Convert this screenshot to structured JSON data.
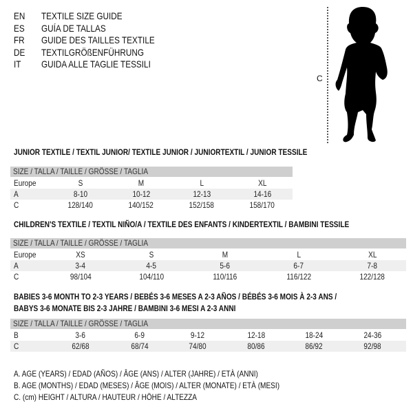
{
  "header": [
    {
      "code": "EN",
      "title": "TEXTILE SIZE GUIDE"
    },
    {
      "code": "ES",
      "title": "GUÍA DE TALLAS"
    },
    {
      "code": "FR",
      "title": "GUIDE DES TAILLES TEXTILE"
    },
    {
      "code": "DE",
      "title": "TEXTILGRÖßENFÜHRUNG"
    },
    {
      "code": "IT",
      "title": "GUIDA ALLE TAGLIE TESSILI"
    }
  ],
  "figure": {
    "measure_label": "C",
    "icon": "child-silhouette"
  },
  "size_header": "SIZE / TALLA / TAILLE / GRÖSSE / TAGLIA",
  "tables": [
    {
      "title": "JUNIOR TEXTILE / TEXTIL JUNIOR/ TEXTILE JUNIOR / JUNIORTEXTIL / JUNIOR TESSILE",
      "rows": [
        {
          "label": "Europe",
          "values": [
            "S",
            "M",
            "L",
            "XL"
          ]
        },
        {
          "label": "A",
          "values": [
            "8-10",
            "10-12",
            "12-13",
            "14-16"
          ]
        },
        {
          "label": "C",
          "values": [
            "128/140",
            "140/152",
            "152/158",
            "158/170"
          ]
        }
      ]
    },
    {
      "title": "CHILDREN'S TEXTILE / TEXTIL NIÑO/A / TEXTILE DES ENFANTS / KINDERTEXTIL / BAMBINI TESSILE",
      "rows": [
        {
          "label": "Europe",
          "values": [
            "XS",
            "S",
            "M",
            "L",
            "XL"
          ]
        },
        {
          "label": "A",
          "values": [
            "3-4",
            "4-5",
            "5-6",
            "6-7",
            "7-8"
          ]
        },
        {
          "label": "C",
          "values": [
            "98/104",
            "104/110",
            "110/116",
            "116/122",
            "122/128"
          ]
        }
      ]
    },
    {
      "title": "BABIES 3-6 MONTH TO 2-3 YEARS / BEBÉS 3-6 MESES A 2-3 AÑOS / BÉBÉS 3-6 MOIS À 2-3 ANS /",
      "title2": "BABYS 3-6 MONATE BIS 2-3 JAHRE / BAMBINI 3-6 MESI A 2-3 ANNI",
      "rows": [
        {
          "label": "B",
          "values": [
            "3-6",
            "6-9",
            "9-12",
            "12-18",
            "18-24",
            "24-36"
          ]
        },
        {
          "label": "C",
          "values": [
            "62/68",
            "68/74",
            "74/80",
            "80/86",
            "86/92",
            "92/98"
          ]
        }
      ]
    }
  ],
  "legend": [
    "A. AGE (YEARS) / EDAD (AÑOS) / ÂGE (ANS) / ALTER (JAHRE) / ETÀ (ANNI)",
    "B. AGE (MONTHS) / EDAD (MESES) / ÂGE (MOIS) / ALTER (MONATE) / ETÀ (MESI)",
    "C. (cm) HEIGHT / ALTURA / HAUTEUR / HÖHE / ALTEZZA"
  ],
  "colors": {
    "header_bar": "#cfcfcf",
    "row_band": "#efefef"
  }
}
